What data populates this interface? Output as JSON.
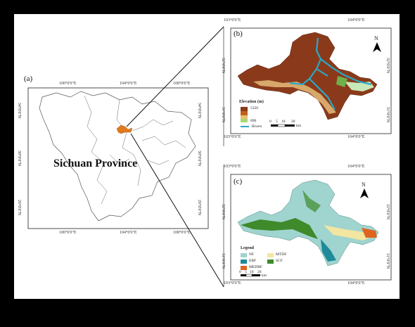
{
  "panels": {
    "a": {
      "label": "(a)",
      "province": "Sichuan Province",
      "top_lons": [
        "100°0'0\"E",
        "104°0'0\"E",
        "108°0'0\"E"
      ],
      "bottom_lons": [
        "100°0'0\"E",
        "104°0'0\"E",
        "108°0'0\"E"
      ],
      "lats": [
        "34°0'0\"N",
        "30°0'0\"N",
        "26°0'0\"N"
      ]
    },
    "b": {
      "label": "(b)",
      "top_lons": [
        "103°0'0\"E",
        "104°0'0\"E"
      ],
      "bottom_lons": [
        "103°0'0\"E",
        "104°0'0\"E"
      ],
      "lats": [
        "32°0'0\"N",
        "31°0'0\"N"
      ],
      "legend_title": "Elevation (m)",
      "elev_max": "5320",
      "elev_min": "890",
      "rivers_label": "Rivers",
      "scale": [
        "0",
        "5",
        "10",
        "20"
      ],
      "scale_unit": "km",
      "north": "N"
    },
    "c": {
      "label": "(c)",
      "top_lons": [
        "103°0'0\"E",
        "104°0'0\"E"
      ],
      "bottom_lons": [
        "103°0'0\"E",
        "104°0'0\"E"
      ],
      "lats": [
        "32°0'0\"N",
        "31°0'0\"N"
      ],
      "legend_title": "Legend",
      "legend_items": [
        {
          "label": "NF",
          "color": "#9fd4cf"
        },
        {
          "label": "EBF",
          "color": "#1f8a9a"
        },
        {
          "label": "MEDBF",
          "color": "#e0641e"
        },
        {
          "label": "MTDF",
          "color": "#f3e6a0"
        },
        {
          "label": "SCF",
          "color": "#3f8a2a"
        }
      ],
      "scale": [
        "0",
        "5",
        "10",
        "20"
      ],
      "scale_unit": "km",
      "north": "N"
    }
  },
  "colors": {
    "study_area": "#e07a1e",
    "connector": "#111111"
  }
}
